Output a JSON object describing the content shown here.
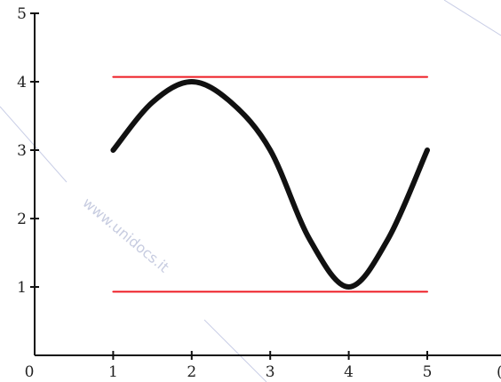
{
  "chart_data": {
    "type": "line",
    "xlim": [
      0,
      5
    ],
    "ylim": [
      0,
      5
    ],
    "x_ticks": [
      "0",
      "1",
      "2",
      "3",
      "4",
      "5"
    ],
    "y_ticks": [
      "0",
      "1",
      "2",
      "3",
      "4",
      "5"
    ],
    "x_axis_end_label": "(",
    "grid": false,
    "legend": "none",
    "series": [
      {
        "x": [
          1,
          1.5,
          2,
          2.5,
          3,
          3.5,
          4,
          4.5,
          5
        ],
        "y": [
          3,
          3.7,
          4,
          3.7,
          3,
          1.7,
          1,
          1.7,
          3
        ],
        "color": "#111111"
      },
      {
        "x": [
          1,
          5
        ],
        "y": [
          4.07,
          4.07
        ],
        "color": "#ee1c24"
      },
      {
        "x": [
          1,
          5
        ],
        "y": [
          0.93,
          0.93
        ],
        "color": "#ee1c24"
      }
    ]
  },
  "watermark": {
    "text": "www.unidocs.it",
    "color": "#9aa3c8"
  }
}
